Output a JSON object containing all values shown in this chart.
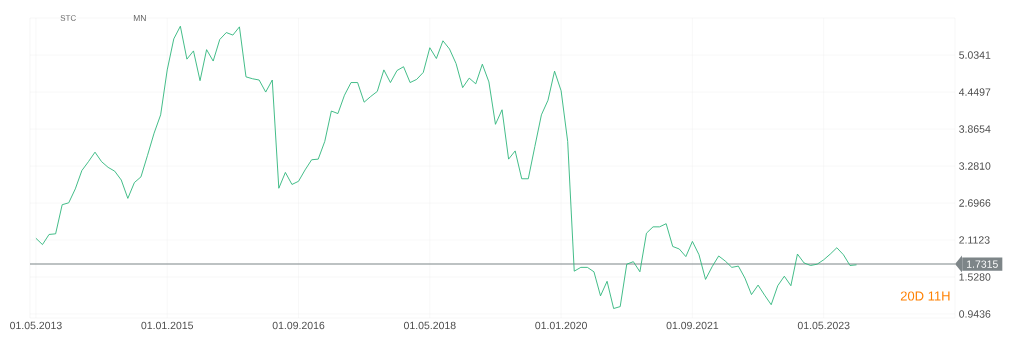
{
  "chart_data": {
    "type": "line",
    "x": [
      "2013-05",
      "2013-06",
      "2013-07",
      "2013-08",
      "2013-09",
      "2013-10",
      "2013-11",
      "2013-12",
      "2014-01",
      "2014-02",
      "2014-03",
      "2014-04",
      "2014-05",
      "2014-06",
      "2014-07",
      "2014-08",
      "2014-09",
      "2014-10",
      "2014-11",
      "2014-12",
      "2015-01",
      "2015-02",
      "2015-03",
      "2015-04",
      "2015-05",
      "2015-06",
      "2015-07",
      "2015-08",
      "2015-09",
      "2015-10",
      "2015-11",
      "2015-12",
      "2016-01",
      "2016-02",
      "2016-03",
      "2016-04",
      "2016-05",
      "2016-06",
      "2016-07",
      "2016-08",
      "2016-09",
      "2016-10",
      "2016-11",
      "2016-12",
      "2017-01",
      "2017-02",
      "2017-03",
      "2017-04",
      "2017-05",
      "2017-06",
      "2017-07",
      "2017-08",
      "2017-09",
      "2017-10",
      "2017-11",
      "2017-12",
      "2018-01",
      "2018-02",
      "2018-03",
      "2018-04",
      "2018-05",
      "2018-06",
      "2018-07",
      "2018-08",
      "2018-09",
      "2018-10",
      "2018-11",
      "2018-12",
      "2019-01",
      "2019-02",
      "2019-03",
      "2019-04",
      "2019-05",
      "2019-06",
      "2019-07",
      "2019-08",
      "2019-09",
      "2019-10",
      "2019-11",
      "2019-12",
      "2020-01",
      "2020-02",
      "2020-03",
      "2020-04",
      "2020-05",
      "2020-06",
      "2020-07",
      "2020-08",
      "2020-09",
      "2020-10",
      "2020-11",
      "2020-12",
      "2021-01",
      "2021-02",
      "2021-03",
      "2021-04",
      "2021-05",
      "2021-06",
      "2021-07",
      "2021-08",
      "2021-09",
      "2021-10",
      "2021-11",
      "2021-12",
      "2022-01",
      "2022-02",
      "2022-03",
      "2022-04",
      "2022-05",
      "2022-06",
      "2022-07",
      "2022-08",
      "2022-09",
      "2022-10",
      "2022-11",
      "2022-12",
      "2023-01",
      "2023-02",
      "2023-03",
      "2023-04",
      "2023-05",
      "2023-06",
      "2023-07",
      "2023-08",
      "2023-09",
      "2023-10"
    ],
    "series": [
      {
        "color": "#2fb67c",
        "values": [
          2.14,
          2.04,
          2.2,
          2.21,
          2.67,
          2.7,
          2.92,
          3.21,
          3.35,
          3.5,
          3.35,
          3.26,
          3.2,
          3.06,
          2.77,
          3.02,
          3.11,
          3.45,
          3.8,
          4.09,
          4.8,
          5.29,
          5.49,
          4.97,
          5.1,
          4.63,
          5.12,
          4.94,
          5.28,
          5.39,
          5.35,
          5.48,
          4.69,
          4.66,
          4.64,
          4.45,
          4.64,
          2.93,
          3.18,
          2.99,
          3.04,
          3.22,
          3.38,
          3.39,
          3.67,
          4.15,
          4.11,
          4.4,
          4.6,
          4.6,
          4.29,
          4.38,
          4.46,
          4.8,
          4.6,
          4.79,
          4.85,
          4.6,
          4.65,
          4.76,
          5.15,
          4.98,
          5.26,
          5.13,
          4.9,
          4.52,
          4.67,
          4.58,
          4.89,
          4.61,
          3.94,
          4.17,
          3.39,
          3.52,
          3.08,
          3.08,
          3.59,
          4.09,
          4.32,
          4.78,
          4.47,
          3.67,
          1.62,
          1.68,
          1.68,
          1.61,
          1.23,
          1.46,
          1.03,
          1.06,
          1.73,
          1.77,
          1.61,
          2.22,
          2.32,
          2.32,
          2.37,
          2.01,
          1.97,
          1.85,
          2.09,
          1.88,
          1.49,
          1.69,
          1.86,
          1.78,
          1.68,
          1.7,
          1.51,
          1.25,
          1.4,
          1.24,
          1.09,
          1.39,
          1.54,
          1.39,
          1.89,
          1.75,
          1.71,
          1.73,
          1.8,
          1.89,
          1.99,
          1.88,
          1.71,
          1.72
        ]
      }
    ],
    "xlim": [
      "2013-04-04",
      "2025-01-01"
    ],
    "xticks": [
      {
        "value": "2013-05-01",
        "label": "01.05.2013"
      },
      {
        "value": "2015-01-01",
        "label": "01.01.2015"
      },
      {
        "value": "2016-09-01",
        "label": "01.09.2016"
      },
      {
        "value": "2018-05-01",
        "label": "01.05.2018"
      },
      {
        "value": "2020-01-01",
        "label": "01.01.2020"
      },
      {
        "value": "2021-09-01",
        "label": "01.09.2021"
      },
      {
        "value": "2023-05-01",
        "label": "01.05.2023"
      }
    ],
    "ylim": [
      0.88,
      5.62
    ],
    "yticks": [
      0.9436,
      {
        "value": 1.528,
        "label": "1.5280"
      },
      2.1123,
      2.6966,
      {
        "value": 3.281,
        "label": "3.2810"
      },
      3.8654,
      4.4497,
      5.0341
    ],
    "ref_lines": [
      {
        "axis": "y",
        "value": 1.7315,
        "label": "1.7315",
        "color": "#7d8588"
      }
    ],
    "annotations": [
      "STC",
      "MN",
      "20D 11H"
    ],
    "grid": true,
    "marker": "none",
    "line_style": "solid"
  }
}
